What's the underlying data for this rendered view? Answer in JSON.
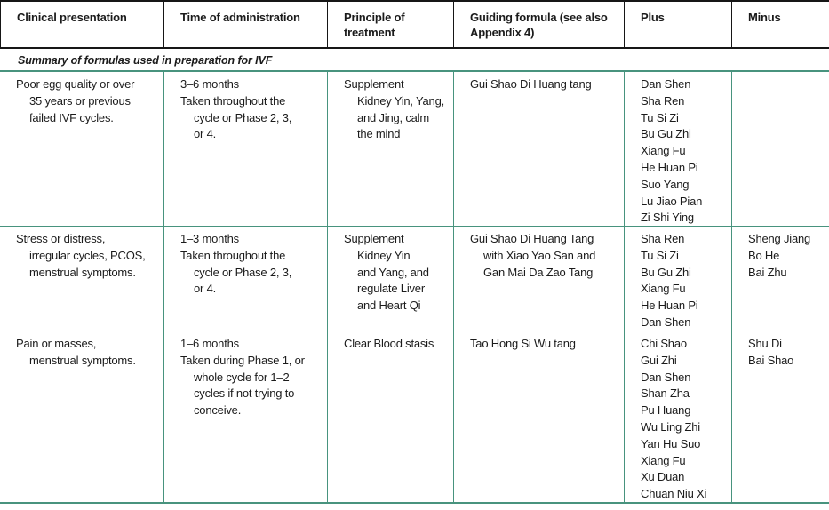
{
  "table": {
    "headers": {
      "clinical": "Clinical presentation",
      "time": "Time of administration",
      "principle": "Principle of treatment",
      "formula": "Guiding formula (see also Appendix 4)",
      "plus": "Plus",
      "minus": "Minus"
    },
    "section_title": "Summary of formulas used in preparation for IVF",
    "colors": {
      "rule_teal": "#48937e",
      "rule_black": "#161616",
      "text": "#1b1b1b"
    },
    "rows": [
      {
        "clinical": [
          [
            "Poor egg quality or over",
            "35 years or previous",
            "failed IVF cycles."
          ]
        ],
        "time": [
          [
            "3–6 months"
          ],
          [
            "Taken throughout the",
            "cycle or Phase 2, 3,",
            "or 4."
          ]
        ],
        "principle": [
          [
            "Supplement",
            "Kidney Yin, Yang,",
            "and Jing, calm",
            "the mind"
          ]
        ],
        "formula": [
          [
            "Gui Shao Di Huang tang"
          ]
        ],
        "plus": [
          "Dan Shen",
          "Sha Ren",
          "Tu Si Zi",
          "Bu Gu Zhi",
          "Xiang Fu",
          "He Huan Pi",
          "Suo Yang",
          "Lu Jiao Pian",
          "Zi Shi Ying"
        ],
        "minus": []
      },
      {
        "clinical": [
          [
            "Stress or distress,",
            "irregular cycles, PCOS,",
            "menstrual symptoms."
          ]
        ],
        "time": [
          [
            "1–3 months"
          ],
          [
            "Taken throughout the",
            "cycle or Phase 2, 3,",
            "or 4."
          ]
        ],
        "principle": [
          [
            "Supplement",
            "Kidney Yin",
            "and Yang, and",
            "regulate Liver",
            "and Heart Qi"
          ]
        ],
        "formula": [
          [
            "Gui Shao Di Huang Tang",
            "with Xiao Yao San and",
            "Gan Mai Da Zao Tang"
          ]
        ],
        "plus": [
          "Sha Ren",
          "Tu Si Zi",
          "Bu Gu Zhi",
          "Xiang Fu",
          "He Huan Pi",
          "Dan Shen"
        ],
        "minus": [
          "Sheng Jiang",
          "Bo He",
          "Bai Zhu"
        ]
      },
      {
        "clinical": [
          [
            "Pain or masses,",
            "menstrual symptoms."
          ]
        ],
        "time": [
          [
            "1–6 months"
          ],
          [
            "Taken during Phase 1, or",
            "whole cycle for 1–2",
            "cycles if not trying to",
            "conceive."
          ]
        ],
        "principle": [
          [
            "Clear Blood stasis"
          ]
        ],
        "formula": [
          [
            "Tao Hong Si Wu tang"
          ]
        ],
        "plus": [
          "Chi Shao",
          "Gui Zhi",
          "Dan Shen",
          "Shan Zha",
          "Pu Huang",
          "Wu Ling Zhi",
          "Yan Hu Suo",
          "Xiang Fu",
          "Xu Duan",
          "Chuan Niu Xi"
        ],
        "minus": [
          "Shu Di",
          "Bai Shao"
        ]
      }
    ]
  }
}
